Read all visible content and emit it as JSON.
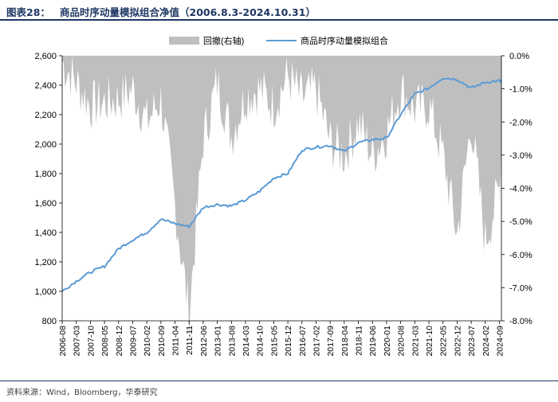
{
  "header": {
    "figure_label": "图表28：",
    "title": "商品时序动量模拟组合净值（2006.8.3-2024.10.31）"
  },
  "footer": {
    "source": "资料来源：Wind，Bloomberg，华泰研究"
  },
  "colors": {
    "drawdown_fill": "#bfbfbf",
    "nav_line": "#5b9bd5",
    "header_text": "#1f3864",
    "rule": "#1f3864"
  },
  "chart_data": {
    "type": "line+area",
    "legend": [
      "回撤(右轴)",
      "商品时序动量模拟组合"
    ],
    "legend_position": "top-center",
    "grid": false,
    "left_axis": {
      "ylim": [
        800,
        2600
      ],
      "ticks": [
        "2,600",
        "2,400",
        "2,200",
        "2,000",
        "1,800",
        "1,600",
        "1,400",
        "1,200",
        "1,000",
        "800"
      ]
    },
    "right_axis": {
      "ylim": [
        -8.0,
        0.0
      ],
      "ticks": [
        "0.0%",
        "-1.0%",
        "-2.0%",
        "-3.0%",
        "-4.0%",
        "-5.0%",
        "-6.0%",
        "-7.0%",
        "-8.0%"
      ]
    },
    "x_ticks": [
      "2006-08",
      "2007-03",
      "2007-10",
      "2008-05",
      "2008-12",
      "2009-07",
      "2010-02",
      "2010-09",
      "2011-04",
      "2011-11",
      "2012-06",
      "2013-01",
      "2013-08",
      "2014-03",
      "2014-10",
      "2015-05",
      "2015-12",
      "2016-07",
      "2017-02",
      "2017-09",
      "2018-04",
      "2018-11",
      "2019-06",
      "2020-01",
      "2020-08",
      "2021-03",
      "2021-10",
      "2022-05",
      "2022-12",
      "2023-07",
      "2024-02",
      "2024-09"
    ],
    "series": [
      {
        "name": "商品时序动量模拟组合",
        "axis": "left",
        "x": [
          "2006-08",
          "2007-03",
          "2007-10",
          "2008-05",
          "2008-12",
          "2009-07",
          "2010-02",
          "2010-09",
          "2011-04",
          "2011-11",
          "2012-06",
          "2013-01",
          "2013-08",
          "2014-03",
          "2014-10",
          "2015-05",
          "2015-12",
          "2016-07",
          "2017-02",
          "2017-09",
          "2018-04",
          "2018-11",
          "2019-06",
          "2020-01",
          "2020-08",
          "2021-03",
          "2021-10",
          "2022-05",
          "2022-12",
          "2023-07",
          "2024-02",
          "2024-09",
          "2024-10"
        ],
        "values": [
          1000,
          1070,
          1130,
          1170,
          1290,
          1350,
          1400,
          1490,
          1460,
          1440,
          1570,
          1590,
          1580,
          1620,
          1680,
          1770,
          1800,
          1960,
          1980,
          1990,
          1950,
          2010,
          2030,
          2040,
          2200,
          2340,
          2380,
          2450,
          2440,
          2380,
          2420,
          2430,
          2420
        ]
      },
      {
        "name": "回撤(右轴)",
        "axis": "right",
        "x": [
          "2006-08",
          "2007-03",
          "2007-10",
          "2008-05",
          "2008-12",
          "2009-07",
          "2010-02",
          "2010-09",
          "2011-04",
          "2011-11",
          "2012-06",
          "2013-01",
          "2013-08",
          "2014-03",
          "2014-10",
          "2015-05",
          "2015-12",
          "2016-07",
          "2017-02",
          "2017-09",
          "2018-04",
          "2018-11",
          "2019-06",
          "2020-01",
          "2020-08",
          "2021-03",
          "2021-10",
          "2022-05",
          "2022-12",
          "2023-07",
          "2024-02",
          "2024-09",
          "2024-10"
        ],
        "values": [
          -0.2,
          -0.8,
          -1.5,
          -1.4,
          -1.3,
          -1.0,
          -2.0,
          -1.3,
          -4.5,
          -7.8,
          -2.5,
          -0.8,
          -2.4,
          -1.2,
          -1.0,
          -1.5,
          -0.6,
          -1.3,
          -1.0,
          -2.6,
          -3.0,
          -2.0,
          -3.0,
          -2.3,
          -1.0,
          -1.6,
          -1.5,
          -3.0,
          -5.4,
          -2.0,
          -5.6,
          -4.0,
          -3.0
        ]
      }
    ]
  }
}
